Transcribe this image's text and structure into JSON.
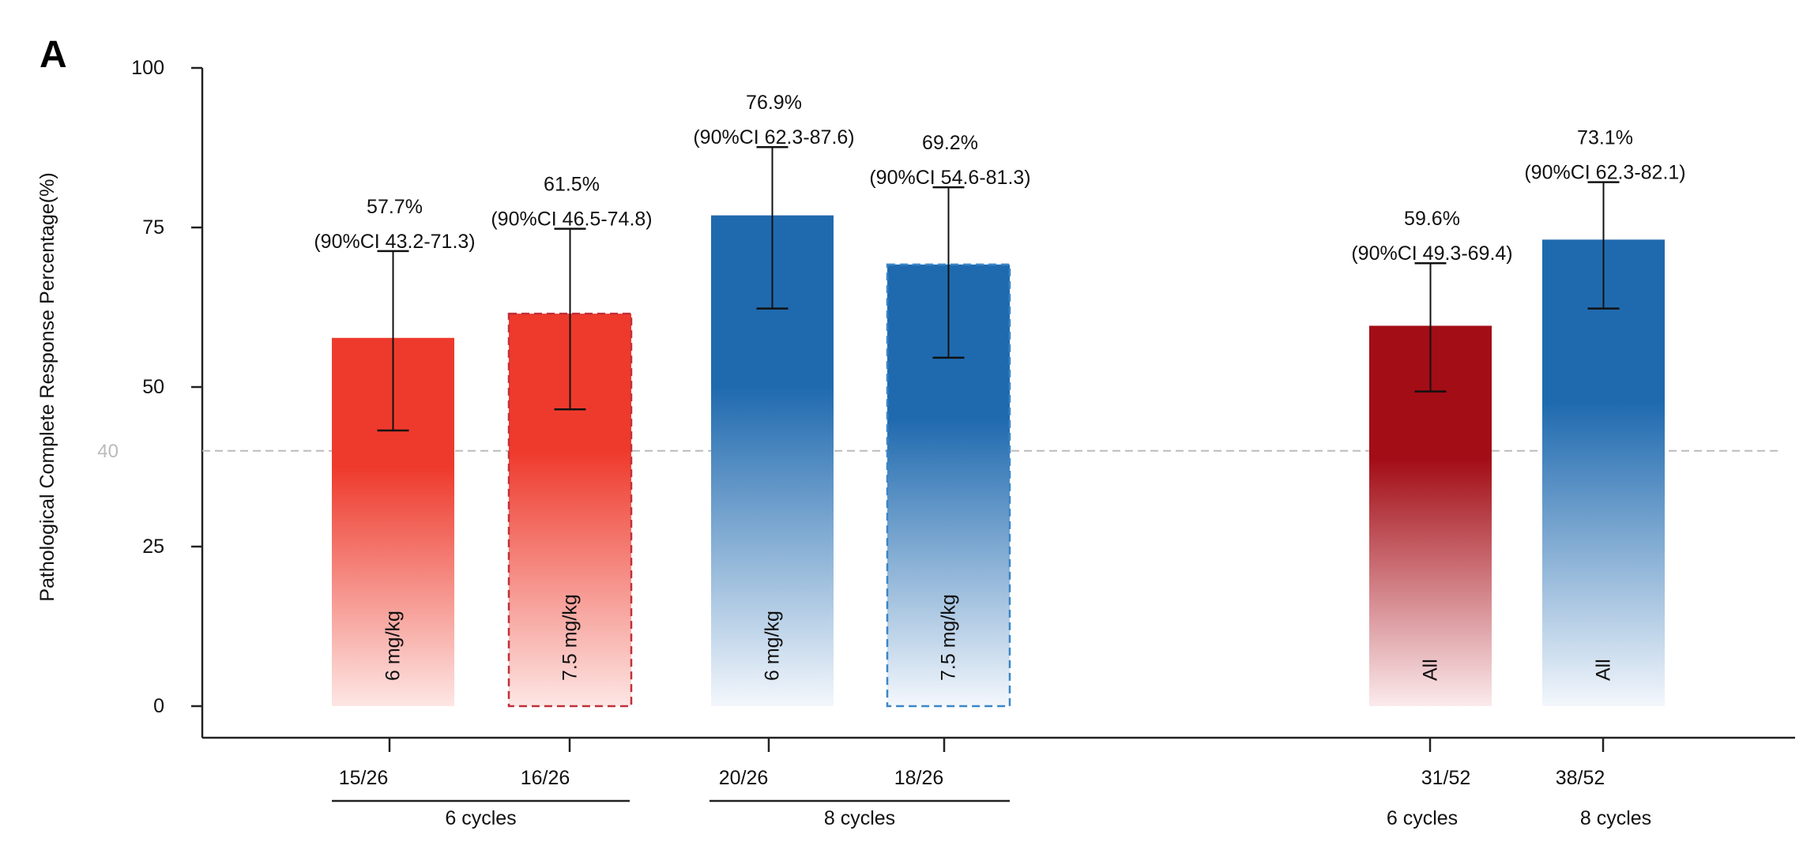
{
  "panel_label": "A",
  "chart_data": {
    "type": "bar",
    "ylabel": "Pathological Complete Response Percentage(%)",
    "ylim": [
      0,
      100
    ],
    "yticks": [
      0,
      25,
      50,
      75,
      100
    ],
    "reference_line": {
      "value": 40,
      "label": "40",
      "color": "#bbbbbb"
    },
    "grid": false,
    "bars": [
      {
        "value": 57.7,
        "ci": [
          43.2,
          71.3
        ],
        "value_label": "57.7%",
        "ci_label": "(90%CI 43.2-71.3)",
        "inner_label": "6 mg/kg",
        "count": "15/26",
        "color": "#ee3a2c",
        "dashed": false
      },
      {
        "value": 61.5,
        "ci": [
          46.5,
          74.8
        ],
        "value_label": "61.5%",
        "ci_label": "(90%CI 46.5-74.8)",
        "inner_label": "7.5 mg/kg",
        "count": "16/26",
        "color": "#ee3a2c",
        "dashed": true,
        "border_color": "#c0303a"
      },
      {
        "value": 76.9,
        "ci": [
          62.3,
          87.6
        ],
        "value_label": "76.9%",
        "ci_label": "(90%CI 62.3-87.6)",
        "inner_label": "6 mg/kg",
        "count": "20/26",
        "color": "#1f6aaf",
        "dashed": false
      },
      {
        "value": 69.2,
        "ci": [
          54.6,
          81.3
        ],
        "value_label": "69.2%",
        "ci_label": "(90%CI 54.6-81.3)",
        "inner_label": "7.5 mg/kg",
        "count": "18/26",
        "color": "#1f6aaf",
        "dashed": true,
        "border_color": "#3a86c8"
      },
      {
        "value": 59.6,
        "ci": [
          49.3,
          69.4
        ],
        "value_label": "59.6%",
        "ci_label": "(90%CI 49.3-69.4)",
        "inner_label": "All",
        "count": "31/52",
        "color": "#a30d16",
        "dashed": false
      },
      {
        "value": 73.1,
        "ci": [
          62.3,
          82.1
        ],
        "value_label": "73.1%",
        "ci_label": "(90%CI 62.3-82.1)",
        "inner_label": "All",
        "count": "38/52",
        "color": "#1f6aaf",
        "dashed": false
      }
    ],
    "groups": [
      {
        "label": "6 cycles",
        "bars": [
          0,
          1
        ],
        "underline": true
      },
      {
        "label": "8 cycles",
        "bars": [
          2,
          3
        ],
        "underline": true
      },
      {
        "label": "6 cycles",
        "bars": [
          4
        ],
        "underline": false
      },
      {
        "label": "8 cycles",
        "bars": [
          5
        ],
        "underline": false
      }
    ]
  }
}
